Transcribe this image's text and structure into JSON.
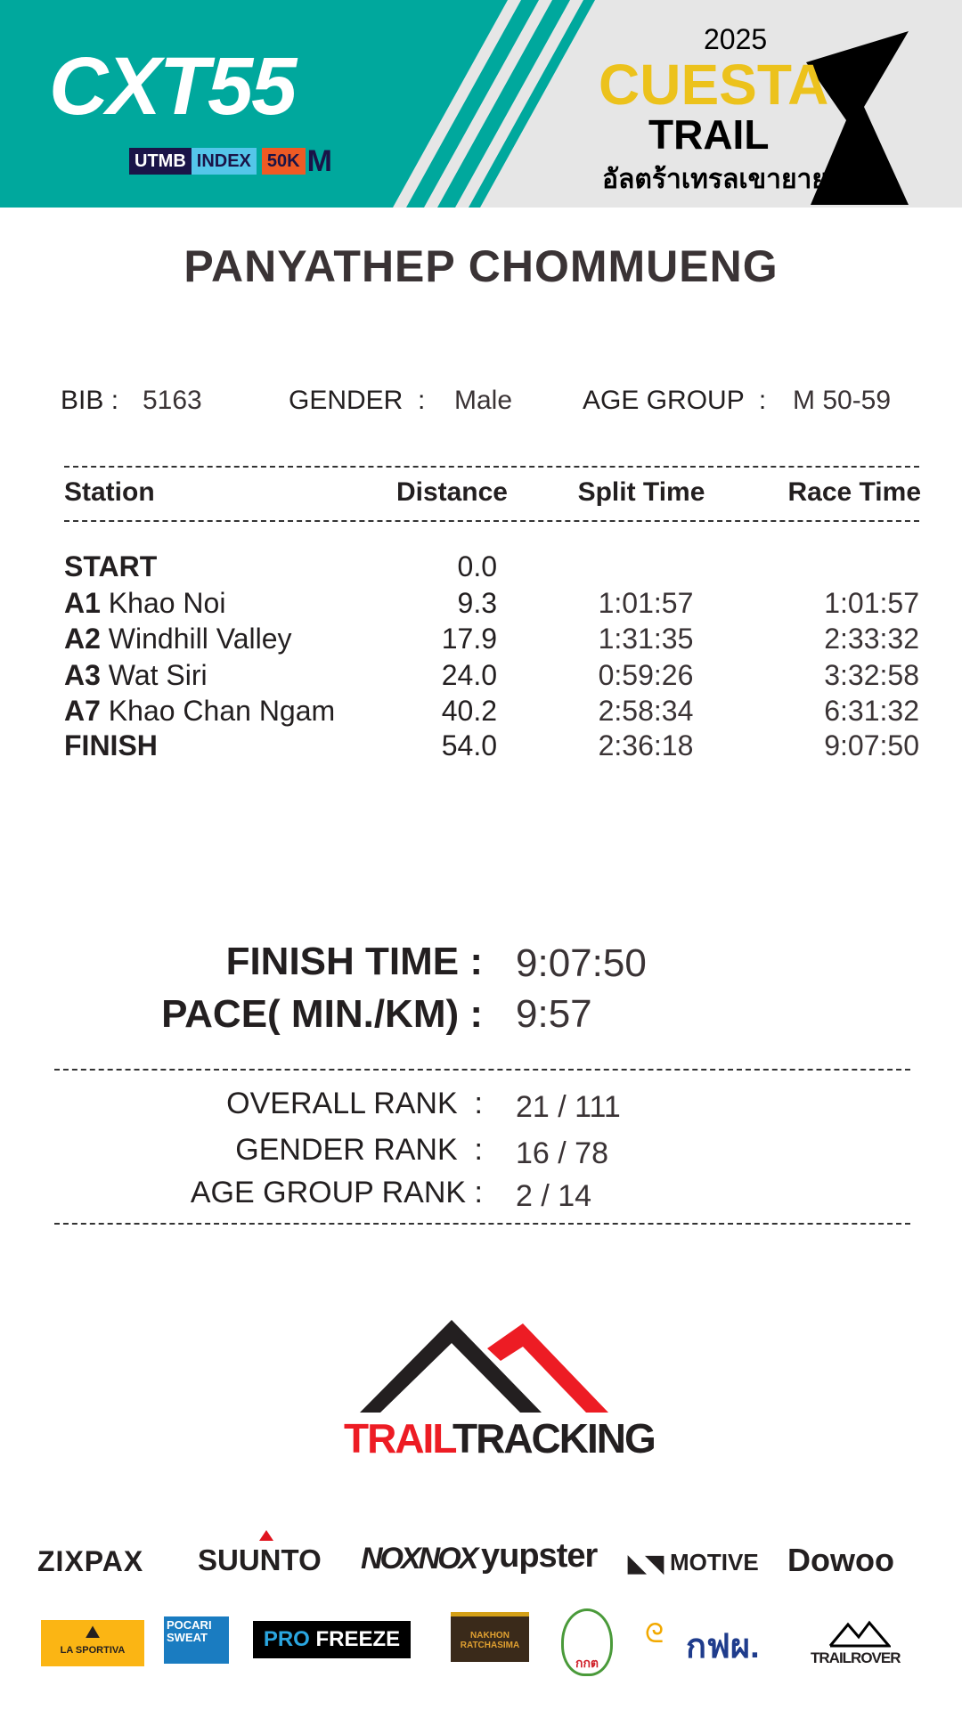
{
  "header": {
    "left_logo": "CXT55",
    "badges": [
      "UTMB",
      "INDEX",
      "50K",
      "M"
    ],
    "year": "2025",
    "event_name_1": "CUESTA",
    "event_name_2": "TRAIL",
    "event_thai": "อัลตร้าเทรลเขายายเที่ยง",
    "colors": {
      "teal": "#00a89d",
      "yellow": "#ecc21c",
      "gray": "#e6e6e6"
    }
  },
  "runner": {
    "name": "PANYATHEP CHOMMUENG",
    "bib_label": "BIB :",
    "bib": "5163",
    "gender_label": "GENDER  :",
    "gender": "Male",
    "age_group_label": "AGE GROUP  :",
    "age_group": "M 50-59"
  },
  "table": {
    "headers": [
      "Station",
      "Distance",
      "Split Time",
      "Race Time"
    ],
    "rows": [
      {
        "code": "START",
        "name": "",
        "distance": "0.0",
        "split": "",
        "race": ""
      },
      {
        "code": "A1",
        "name": "Khao Noi",
        "distance": "9.3",
        "split": "1:01:57",
        "race": "1:01:57"
      },
      {
        "code": "A2",
        "name": "Windhill Valley",
        "distance": "17.9",
        "split": "1:31:35",
        "race": "2:33:32"
      },
      {
        "code": "A3",
        "name": "Wat Siri",
        "distance": "24.0",
        "split": "0:59:26",
        "race": "3:32:58"
      },
      {
        "code": "A7",
        "name": "Khao Chan Ngam",
        "distance": "40.2",
        "split": "2:58:34",
        "race": "6:31:32"
      },
      {
        "code": "FINISH",
        "name": "",
        "distance": "54.0",
        "split": "2:36:18",
        "race": "9:07:50"
      }
    ]
  },
  "summary": {
    "finish_label": "FINISH TIME :",
    "finish": "9:07:50",
    "pace_label": "PACE( MIN./KM) :",
    "pace": "9:57"
  },
  "ranks": [
    {
      "label": "OVERALL RANK  :",
      "value": "21 / 111"
    },
    {
      "label": "GENDER RANK  :",
      "value": "16 / 78"
    },
    {
      "label": "AGE GROUP RANK :",
      "value": "2 / 14"
    }
  ],
  "brand": {
    "part1": "TRAIL",
    "part2": "TRACKING"
  },
  "sponsors_row1": [
    "ZIXPAX",
    "SUUNTO",
    "NOXNOX",
    "yupster",
    "MOTIVE",
    "Dowoo"
  ],
  "sponsors_row2": [
    "LA SPORTIVA",
    "POCARI SWEAT",
    "PRO",
    "FREEZE",
    "NAKHON RATCHASIMA",
    "กกต",
    "กฟผ.",
    "TRAILROVER"
  ]
}
